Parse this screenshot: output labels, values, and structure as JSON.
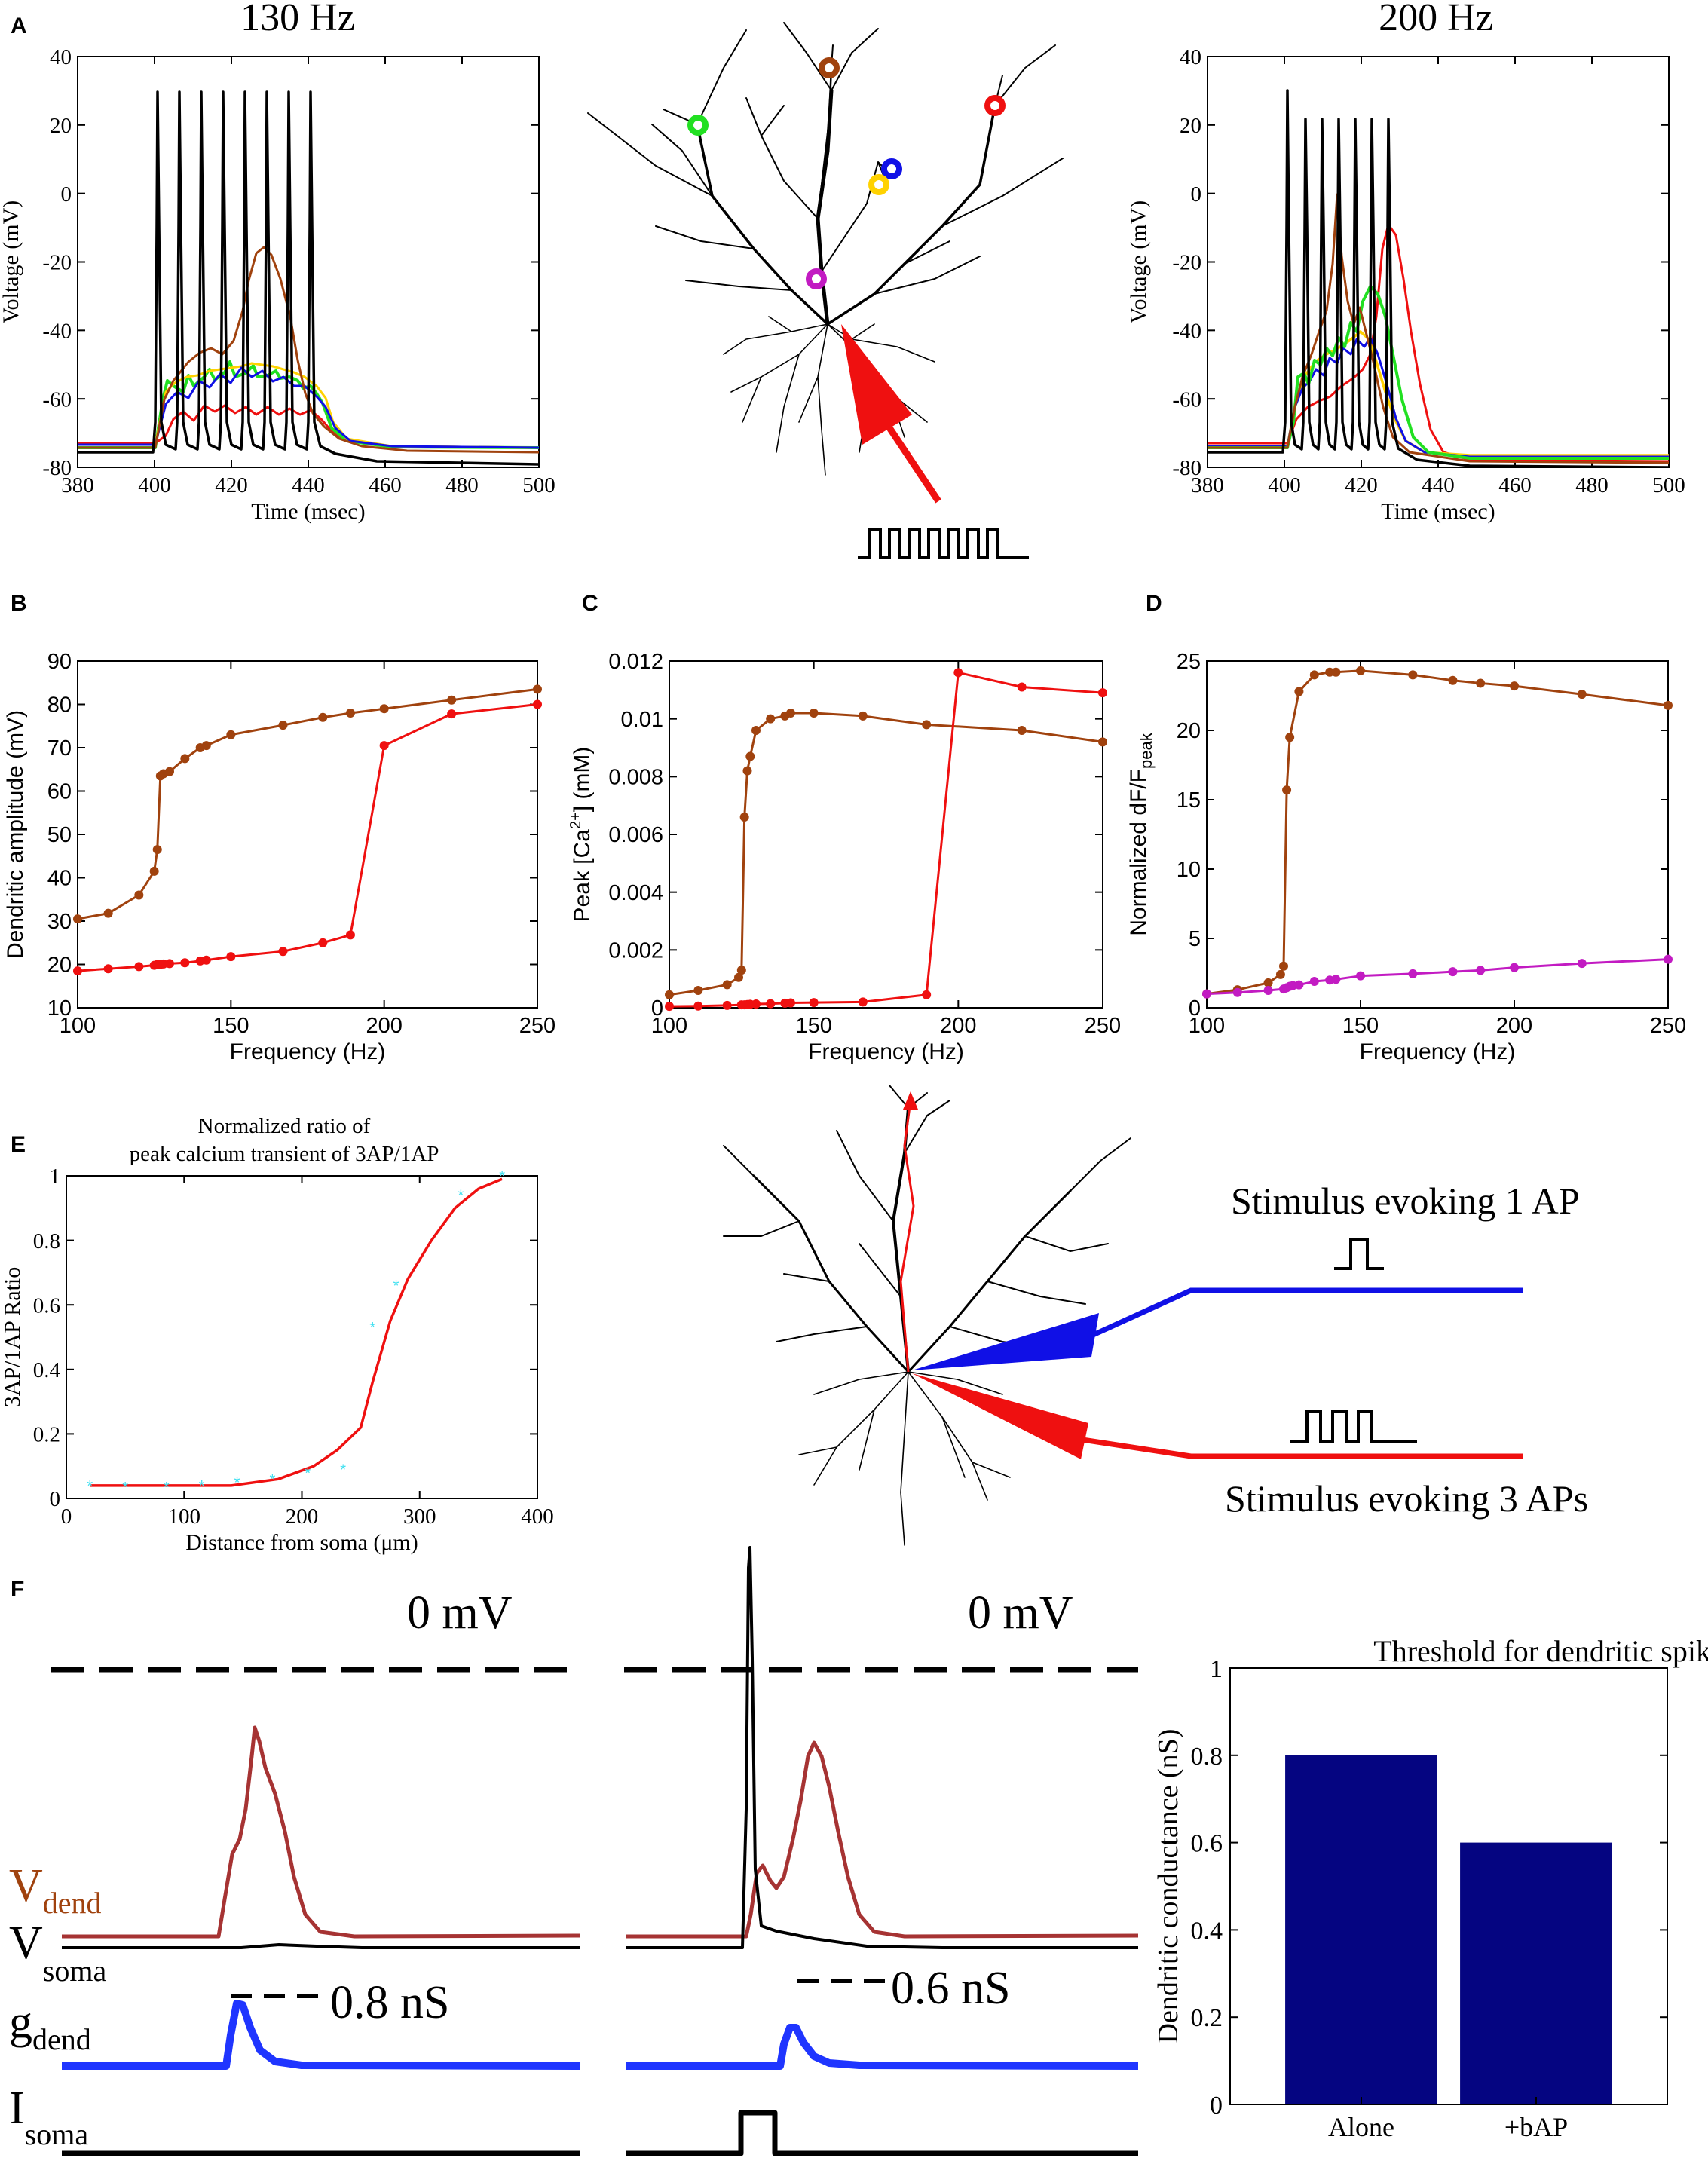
{
  "panel_labels": [
    "A",
    "B",
    "C",
    "D",
    "E",
    "F"
  ],
  "colors": {
    "black": "#000000",
    "brown": "#a0420e",
    "red": "#ef1010",
    "blue": "#1010e6",
    "yellow": "#ffd200",
    "green": "#22e022",
    "magenta": "#c21bc2",
    "cyan": "#40e0f0",
    "navy": "#050581",
    "maroon": "#a63333",
    "trace_blue": "#1f35ff"
  },
  "panel_a": {
    "title_left": "130 Hz",
    "title_right": "200 Hz",
    "ylabel": "Voltage (mV)",
    "xlabel": "Time (msec)",
    "xticks": [
      "380",
      "400",
      "420",
      "440",
      "460",
      "480",
      "500"
    ],
    "yticks": [
      "40",
      "20",
      "0",
      "-20",
      "-40",
      "-60",
      "-80"
    ],
    "xlim": [
      380,
      500
    ],
    "ylim": [
      -80,
      40
    ]
  },
  "chart_data": [
    {
      "id": "B",
      "type": "line",
      "xlabel": "Frequency (Hz)",
      "ylabel": "Dendritic amplitude (mV)",
      "xlim": [
        100,
        250
      ],
      "ylim": [
        10,
        90
      ],
      "xticks": [
        "100",
        "150",
        "200",
        "250"
      ],
      "yticks": [
        "10",
        "20",
        "30",
        "40",
        "50",
        "60",
        "70",
        "80",
        "90"
      ],
      "series": [
        {
          "name": "brown",
          "color": "#a0420e",
          "x": [
            100,
            110,
            120,
            125,
            126,
            127,
            128,
            130,
            135,
            140,
            142,
            150,
            167,
            180,
            189,
            200,
            222,
            250
          ],
          "y": [
            30.5,
            31.8,
            36.0,
            41.5,
            46.5,
            63.5,
            64.0,
            64.5,
            67.5,
            70.0,
            70.5,
            73.0,
            75.2,
            77.0,
            78.0,
            79.0,
            81.0,
            83.5
          ]
        },
        {
          "name": "red",
          "color": "#ef1010",
          "x": [
            100,
            110,
            120,
            125,
            126,
            127,
            128,
            130,
            135,
            140,
            142,
            150,
            167,
            180,
            189,
            200,
            222,
            250
          ],
          "y": [
            18.5,
            19.0,
            19.5,
            19.8,
            20.0,
            20.0,
            20.1,
            20.2,
            20.4,
            20.8,
            21.0,
            21.8,
            23.0,
            25.0,
            26.8,
            70.5,
            77.8,
            80.0
          ]
        }
      ]
    },
    {
      "id": "C",
      "type": "line",
      "xlabel": "Frequency (Hz)",
      "ylabel": "Peak [Ca",
      "ylabel_sup": "2+",
      "ylabel_tail": "] (mM)",
      "xlim": [
        100,
        250
      ],
      "ylim": [
        0,
        0.012
      ],
      "xticks": [
        "100",
        "150",
        "200",
        "250"
      ],
      "yticks": [
        "0",
        "0.002",
        "0.004",
        "0.006",
        "0.008",
        "0.01",
        "0.012"
      ],
      "series": [
        {
          "name": "brown",
          "color": "#a0420e",
          "x": [
            100,
            110,
            120,
            124,
            125,
            126,
            127,
            128,
            130,
            135,
            140,
            142,
            150,
            167,
            189,
            222,
            250
          ],
          "y": [
            0.00045,
            0.0006,
            0.0008,
            0.00105,
            0.0013,
            0.0066,
            0.0082,
            0.0087,
            0.0096,
            0.01,
            0.0101,
            0.0102,
            0.0102,
            0.0101,
            0.0098,
            0.0096,
            0.0092
          ]
        },
        {
          "name": "red",
          "color": "#ef1010",
          "x": [
            100,
            110,
            120,
            125,
            126,
            127,
            128,
            130,
            135,
            140,
            142,
            150,
            167,
            189,
            200,
            222,
            250
          ],
          "y": [
            5e-05,
            6e-05,
            8e-05,
            0.0001,
            0.0001,
            0.00011,
            0.00012,
            0.00013,
            0.00014,
            0.00016,
            0.00017,
            0.00018,
            0.0002,
            0.00045,
            0.0116,
            0.0111,
            0.0109
          ]
        }
      ]
    },
    {
      "id": "D",
      "type": "line",
      "xlabel": "Frequency (Hz)",
      "ylabel": "Normalized dF/F",
      "ylabel_sub": "peak",
      "xlim": [
        100,
        250
      ],
      "ylim": [
        0,
        25
      ],
      "xticks": [
        "100",
        "150",
        "200",
        "250"
      ],
      "yticks": [
        "0",
        "5",
        "10",
        "15",
        "20",
        "25"
      ],
      "series": [
        {
          "name": "brown",
          "color": "#a0420e",
          "x": [
            100,
            110,
            120,
            124,
            125,
            126,
            127,
            130,
            135,
            140,
            142,
            150,
            167,
            180,
            189,
            200,
            222,
            250
          ],
          "y": [
            1.0,
            1.3,
            1.8,
            2.4,
            3.0,
            15.7,
            19.5,
            22.8,
            24.0,
            24.2,
            24.2,
            24.3,
            24.0,
            23.6,
            23.4,
            23.2,
            22.6,
            21.8
          ]
        },
        {
          "name": "magenta",
          "color": "#c21bc2",
          "x": [
            100,
            110,
            120,
            125,
            126,
            127,
            128,
            130,
            135,
            140,
            142,
            150,
            167,
            180,
            189,
            200,
            222,
            250
          ],
          "y": [
            1.0,
            1.1,
            1.25,
            1.35,
            1.45,
            1.55,
            1.6,
            1.65,
            1.9,
            2.0,
            2.05,
            2.3,
            2.45,
            2.6,
            2.7,
            2.9,
            3.2,
            3.5
          ]
        }
      ]
    },
    {
      "id": "E",
      "type": "line",
      "title_line1": "Normalized ratio of",
      "title_line2": "peak calcium transient of 3AP/1AP",
      "xlabel": "Distance from soma (μm)",
      "ylabel": "3AP/1AP Ratio",
      "xlim": [
        0,
        400
      ],
      "ylim": [
        0,
        1
      ],
      "xticks": [
        "0",
        "100",
        "200",
        "300",
        "400"
      ],
      "yticks": [
        "0",
        "0.2",
        "0.4",
        "0.6",
        "0.8",
        "1"
      ],
      "series": [
        {
          "name": "model",
          "color": "#ef1010",
          "x": [
            20,
            60,
            100,
            140,
            180,
            210,
            230,
            250,
            260,
            275,
            290,
            310,
            330,
            350,
            370
          ],
          "y": [
            0.04,
            0.04,
            0.04,
            0.04,
            0.06,
            0.1,
            0.15,
            0.22,
            0.36,
            0.55,
            0.68,
            0.8,
            0.9,
            0.96,
            0.99
          ]
        },
        {
          "name": "data",
          "color": "#40e0f0",
          "style": "star",
          "x": [
            20,
            50,
            85,
            115,
            145,
            175,
            205,
            235,
            260,
            280,
            335,
            370
          ],
          "y": [
            0.04,
            0.035,
            0.035,
            0.04,
            0.05,
            0.06,
            0.08,
            0.09,
            0.53,
            0.66,
            0.94,
            1.0
          ]
        }
      ]
    },
    {
      "id": "F-bar",
      "type": "bar",
      "title": "Threshold for dendritic spike",
      "ylabel": "Dendritic conductance (nS)",
      "categories": [
        "Alone",
        "+bAP"
      ],
      "values": [
        0.8,
        0.6
      ],
      "ylim": [
        0,
        1
      ],
      "yticks": [
        "0",
        "0.2",
        "0.4",
        "0.6",
        "0.8",
        "1"
      ],
      "color": "#050581"
    }
  ],
  "panel_e_stim": {
    "one_ap": "Stimulus evoking 1 AP",
    "three_ap": "Stimulus evoking 3 APs"
  },
  "panel_f": {
    "zero_left": "0 mV",
    "zero_right": "0 mV",
    "v_dend": "V",
    "v_dend_sub": "dend",
    "v_soma": "V",
    "v_soma_sub": "soma",
    "g_dend": "g",
    "g_dend_sub": "dend",
    "i_soma": "I",
    "i_soma_sub": "soma",
    "thr_left": "0.8 nS",
    "thr_right": "0.6 nS"
  }
}
